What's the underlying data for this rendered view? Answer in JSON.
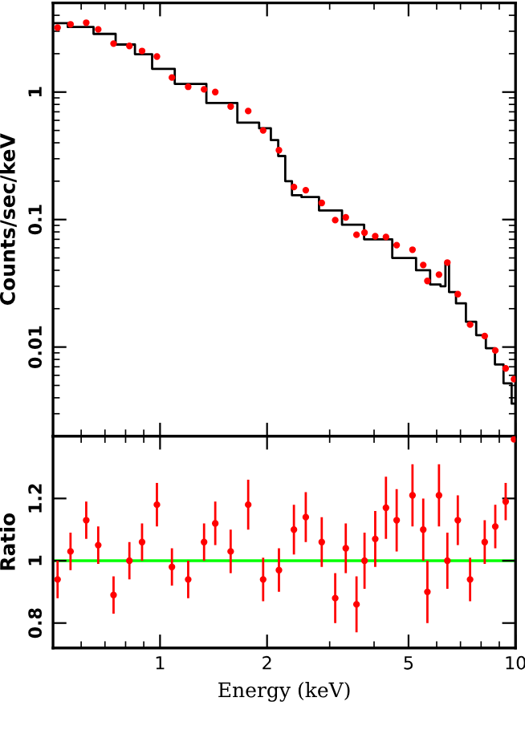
{
  "chart_data": [
    {
      "type": "scatter",
      "ylabel": "Counts/sec/keV",
      "log": "xy",
      "xlim": [
        0.5,
        10
      ],
      "ylim": [
        0.002,
        5
      ],
      "xticks": [
        1,
        2,
        5,
        10
      ],
      "yticks": [
        0.01,
        0.1,
        1
      ],
      "tick_labels": "y",
      "grid": false,
      "legend": false,
      "series": [
        {
          "color": "#ff0000",
          "marker": "circle",
          "x": [
            0.515,
            0.56,
            0.62,
            0.67,
            0.74,
            0.82,
            0.89,
            0.98,
            1.08,
            1.2,
            1.33,
            1.43,
            1.58,
            1.77,
            1.95,
            2.16,
            2.38,
            2.57,
            2.85,
            3.11,
            3.33,
            3.57,
            3.76,
            4.03,
            4.32,
            4.63,
            5.13,
            5.5,
            5.65,
            6.09,
            6.43,
            6.88,
            7.45,
            8.19,
            8.77,
            9.38,
            9.9
          ],
          "values": [
            3.2,
            3.4,
            3.5,
            3.1,
            2.4,
            2.3,
            2.1,
            1.9,
            1.3,
            1.1,
            1.05,
            1.0,
            0.77,
            0.71,
            0.5,
            0.35,
            0.18,
            0.17,
            0.135,
            0.099,
            0.104,
            0.076,
            0.079,
            0.074,
            0.073,
            0.063,
            0.058,
            0.044,
            0.033,
            0.037,
            0.046,
            0.026,
            0.015,
            0.0122,
            0.0094,
            0.0068,
            0.0056
          ]
        },
        {
          "type": "step",
          "color": "#000000",
          "x": [
            0.5,
            0.6,
            0.7,
            0.8,
            0.9,
            1.0,
            1.2,
            1.5,
            1.8,
            2.0,
            2.1,
            2.2,
            2.3,
            2.4,
            2.6,
            3.0,
            3.5,
            4.0,
            5.0,
            5.5,
            6.0,
            6.3,
            6.4,
            6.6,
            7.0,
            7.5,
            8.0,
            8.5,
            9.0,
            9.5,
            10.0
          ],
          "values": [
            3.47,
            3.24,
            2.86,
            2.36,
            1.98,
            1.52,
            1.16,
            0.82,
            0.575,
            0.52,
            0.42,
            0.315,
            0.2,
            0.155,
            0.15,
            0.118,
            0.091,
            0.07,
            0.05,
            0.04,
            0.031,
            0.03,
            0.046,
            0.027,
            0.022,
            0.0158,
            0.0124,
            0.0098,
            0.0073,
            0.0052,
            0.0036
          ]
        }
      ]
    },
    {
      "type": "scatter",
      "xlabel": "Energy (keV)",
      "ylabel": "Ratio",
      "log": "x",
      "xlim": [
        0.5,
        10
      ],
      "ylim": [
        0.72,
        1.4
      ],
      "xticks": [
        1,
        2,
        5,
        10
      ],
      "yticks": [
        0.8,
        1,
        1.2
      ],
      "grid": false,
      "legend": false,
      "ref_lines": [
        {
          "axis": "y",
          "value": 1,
          "color": "#00ff00"
        }
      ],
      "series": [
        {
          "color": "#ff0000",
          "marker": "circle",
          "x": [
            0.515,
            0.56,
            0.62,
            0.67,
            0.74,
            0.82,
            0.89,
            0.98,
            1.08,
            1.2,
            1.33,
            1.43,
            1.58,
            1.77,
            1.95,
            2.16,
            2.38,
            2.57,
            2.85,
            3.11,
            3.33,
            3.57,
            3.76,
            4.03,
            4.32,
            4.63,
            5.13,
            5.5,
            5.65,
            6.09,
            6.43,
            6.88,
            7.45,
            8.19,
            8.77,
            9.38,
            9.9
          ],
          "values": [
            0.94,
            1.03,
            1.13,
            1.05,
            0.89,
            1.0,
            1.06,
            1.18,
            0.98,
            0.94,
            1.06,
            1.12,
            1.03,
            1.18,
            0.94,
            0.97,
            1.1,
            1.14,
            1.06,
            0.88,
            1.04,
            0.86,
            1.0,
            1.07,
            1.17,
            1.13,
            1.21,
            1.1,
            0.9,
            1.21,
            1.0,
            1.13,
            0.94,
            1.06,
            1.11,
            1.19,
            1.39
          ],
          "errors": [
            0.06,
            0.06,
            0.06,
            0.06,
            0.06,
            0.06,
            0.06,
            0.07,
            0.06,
            0.06,
            0.06,
            0.07,
            0.07,
            0.08,
            0.07,
            0.07,
            0.08,
            0.08,
            0.08,
            0.08,
            0.08,
            0.09,
            0.09,
            0.09,
            0.1,
            0.1,
            0.1,
            0.1,
            0.1,
            0.1,
            0.09,
            0.08,
            0.07,
            0.07,
            0.07,
            0.06,
            null
          ]
        }
      ]
    }
  ]
}
